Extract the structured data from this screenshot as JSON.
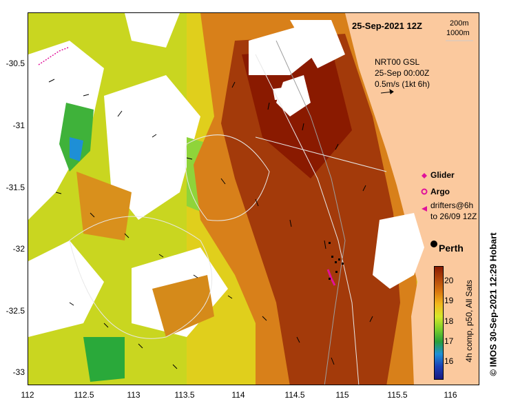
{
  "map": {
    "title": "25-Sep-2021 12Z",
    "isobaths": [
      "200m",
      "1000m"
    ],
    "current_product": {
      "name": "NRT00 GSL",
      "date": "25-Sep 00:00Z",
      "scale": "0.5m/s (1kt 6h)"
    },
    "legend": {
      "glider": "Glider",
      "argo": "Argo",
      "drifters_line1": "drifters@6h",
      "drifters_line2": "to 26/09 12Z",
      "glider_color": "#e0119a",
      "argo_color": "#e0119a",
      "drifter_color": "#e0119a"
    },
    "place": "Perth",
    "colorbar": {
      "ticks": [
        "20",
        "19",
        "18",
        "17",
        "16"
      ],
      "label": "4h comp, p50, All Sats",
      "colors": [
        "#8a1a00",
        "#b3470a",
        "#d9770f",
        "#f2b81d",
        "#d6e82a",
        "#7ccf2a",
        "#2a9f3a",
        "#1e8fd6",
        "#1a3fb5",
        "#1a1a80"
      ]
    },
    "credit": "© IMOS 30-Sep-2021 12:29 Hobart",
    "y_axis": [
      "-30.5",
      "-31",
      "-31.5",
      "-32",
      "-32.5",
      "-33"
    ],
    "x_axis": [
      "112",
      "112.5",
      "113",
      "113.5",
      "114",
      "114.5",
      "115",
      "115.5",
      "116"
    ],
    "land_color": "#fbc99e"
  }
}
